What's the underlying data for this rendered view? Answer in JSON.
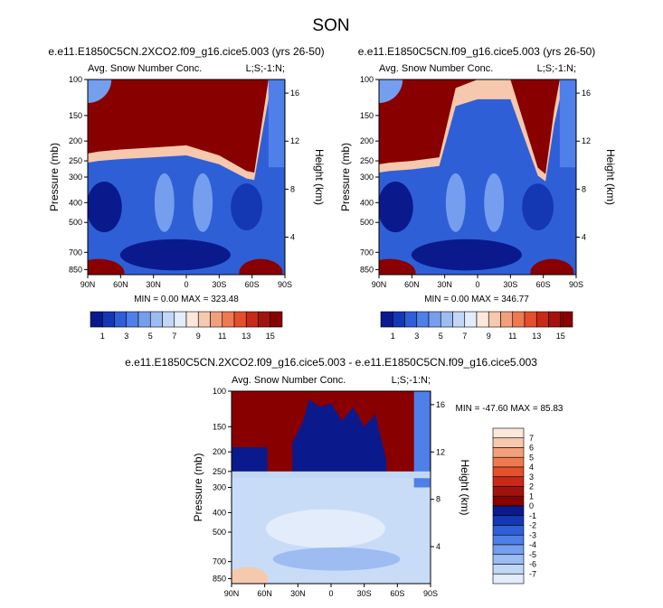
{
  "figure_title": "SON",
  "colors": {
    "blues": [
      "#0a1a8c",
      "#1437b4",
      "#2f5fd6",
      "#4f7fe8",
      "#759fee",
      "#9cbcf2",
      "#c2d7f6",
      "#e2ecfb"
    ],
    "reds": [
      "#fbe7dc",
      "#f6c8ad",
      "#f2a07c",
      "#ee7a52",
      "#e4502b",
      "#c92a17",
      "#a2130c",
      "#880000"
    ],
    "high": "#880000",
    "deep_blue": "#0a1a8c",
    "light_blue": "#c9dcf7",
    "pale": "#e2ecfb"
  },
  "chart_data": [
    {
      "id": "panel-2xco2",
      "type": "heatmap",
      "title": "e.e11.E1850C5CN.2XCO2.f09_g16.cice5.003 (yrs 26-50)",
      "left_label": "Avg. Snow Number Conc.",
      "right_label": "L;S;-1:N;",
      "ylabel": "Pressure (mb)",
      "y2label": "Height (km)",
      "x_ticks": [
        "90N",
        "60N",
        "30N",
        "0",
        "30S",
        "60S",
        "90S"
      ],
      "x_values": [
        90,
        60,
        30,
        0,
        -30,
        -60,
        -90
      ],
      "y_ticks": [
        "100",
        "150",
        "200",
        "250",
        "300",
        "400",
        "500",
        "700",
        "850"
      ],
      "y_values": [
        100,
        150,
        200,
        250,
        300,
        400,
        500,
        700,
        850
      ],
      "y2_ticks": [
        "16",
        "12",
        "8",
        "4"
      ],
      "y2_values": [
        16,
        12,
        8,
        4
      ],
      "ylim": [
        100,
        900
      ],
      "min": "0.00",
      "max": "323.48",
      "stats_text": "MIN =   0.00  MAX = 323.48",
      "tropopause": [
        [
          90,
          230
        ],
        [
          80,
          225
        ],
        [
          60,
          220
        ],
        [
          30,
          215
        ],
        [
          0,
          210
        ],
        [
          -30,
          235
        ],
        [
          -55,
          280
        ],
        [
          -62,
          285
        ],
        [
          -70,
          150
        ],
        [
          -75,
          100
        ]
      ],
      "colorbar": {
        "orientation": "horizontal",
        "labels": [
          "1",
          "3",
          "5",
          "7",
          "9",
          "11",
          "13",
          "15"
        ],
        "label_values": [
          1,
          3,
          5,
          7,
          9,
          11,
          13,
          15
        ]
      }
    },
    {
      "id": "panel-control",
      "type": "heatmap",
      "title": "e.e11.E1850C5CN.f09_g16.cice5.003 (yrs 26-50)",
      "left_label": "Avg. Snow Number Conc.",
      "right_label": "L;S;-1:N;",
      "ylabel": "Pressure (mb)",
      "y2label": "Height (km)",
      "x_ticks": [
        "90N",
        "60N",
        "30N",
        "0",
        "30S",
        "60S",
        "90S"
      ],
      "x_values": [
        90,
        60,
        30,
        0,
        -30,
        -60,
        -90
      ],
      "y_ticks": [
        "100",
        "150",
        "200",
        "250",
        "300",
        "400",
        "500",
        "700",
        "850"
      ],
      "y_values": [
        100,
        150,
        200,
        250,
        300,
        400,
        500,
        700,
        850
      ],
      "y2_ticks": [
        "16",
        "12",
        "8",
        "4"
      ],
      "y2_values": [
        16,
        12,
        8,
        4
      ],
      "ylim": [
        100,
        900
      ],
      "min": "0.00",
      "max": "346.77",
      "stats_text": "MIN =   0.00  MAX = 346.77",
      "tropopause": [
        [
          90,
          260
        ],
        [
          80,
          255
        ],
        [
          60,
          250
        ],
        [
          35,
          240
        ],
        [
          20,
          110
        ],
        [
          0,
          100
        ],
        [
          -30,
          100
        ],
        [
          -55,
          270
        ],
        [
          -62,
          290
        ],
        [
          -70,
          140
        ],
        [
          -75,
          100
        ]
      ],
      "colorbar": {
        "orientation": "horizontal",
        "labels": [
          "1",
          "3",
          "5",
          "7",
          "9",
          "11",
          "13",
          "15"
        ],
        "label_values": [
          1,
          3,
          5,
          7,
          9,
          11,
          13,
          15
        ]
      }
    },
    {
      "id": "panel-diff",
      "type": "heatmap",
      "title": "e.e11.E1850C5CN.2XCO2.f09_g16.cice5.003 - e.e11.E1850C5CN.f09_g16.cice5.003",
      "left_label": "Avg. Snow Number Conc.",
      "right_label": "L;S;-1:N;",
      "ylabel": "Pressure (mb)",
      "y2label": "Height (km)",
      "x_ticks": [
        "90N",
        "60N",
        "30N",
        "0",
        "30S",
        "60S",
        "90S"
      ],
      "x_values": [
        90,
        60,
        30,
        0,
        -30,
        -60,
        -90
      ],
      "y_ticks": [
        "100",
        "150",
        "200",
        "250",
        "300",
        "400",
        "500",
        "700",
        "850"
      ],
      "y_values": [
        100,
        150,
        200,
        250,
        300,
        400,
        500,
        700,
        850
      ],
      "y2_ticks": [
        "16",
        "12",
        "8",
        "4"
      ],
      "y2_values": [
        16,
        12,
        8,
        4
      ],
      "ylim": [
        100,
        900
      ],
      "min": "-47.60",
      "max": "85.83",
      "stats_text": "MIN = -47.60  MAX =  85.83",
      "colorbar": {
        "orientation": "vertical",
        "labels": [
          "7",
          "6",
          "5",
          "4",
          "3",
          "2",
          "1",
          "0",
          "-1",
          "-2",
          "-3",
          "-4",
          "-5",
          "-6",
          "-7"
        ],
        "label_values": [
          7,
          6,
          5,
          4,
          3,
          2,
          1,
          0,
          -1,
          -2,
          -3,
          -4,
          -5,
          -6,
          -7
        ]
      }
    }
  ]
}
